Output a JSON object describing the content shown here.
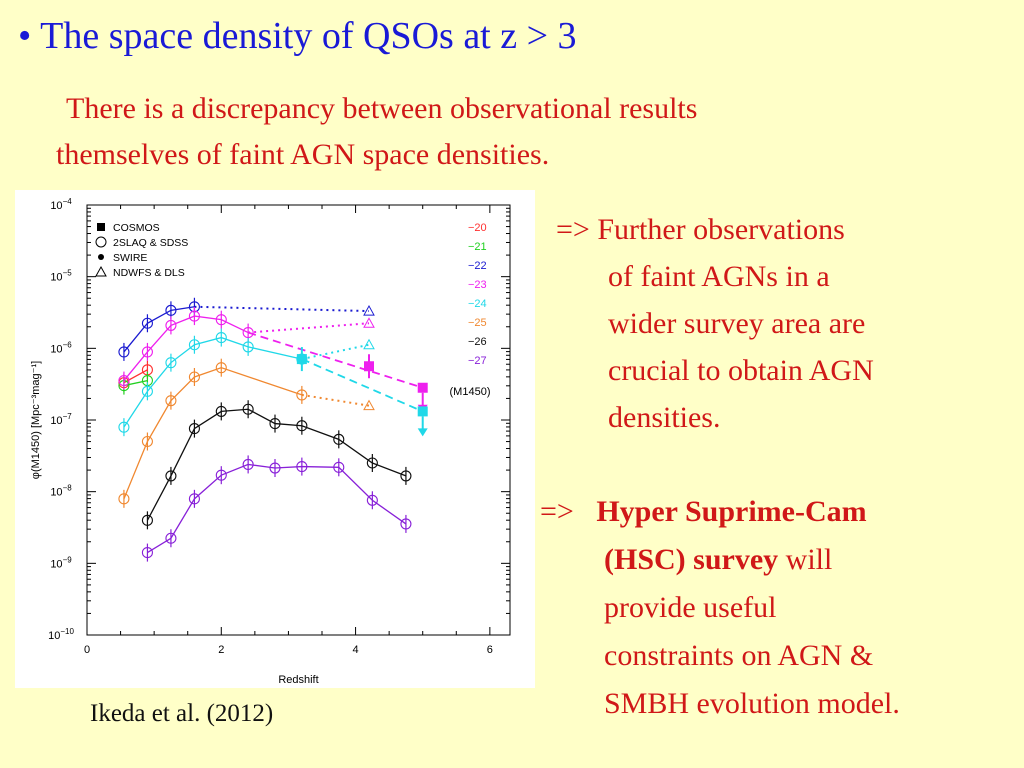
{
  "slide": {
    "title": "• The space density of QSOs at z > 3",
    "subtitle_line1": "There is a discrepancy between observational results",
    "subtitle_line2": "themselves of faint AGN space densities.",
    "point1_prefix": "=> Further observations",
    "point1_lines": [
      "of faint AGNs in a",
      "wider survey area are",
      "crucial to obtain AGN",
      "densities."
    ],
    "point2_prefix": "=>",
    "point2_bold1": "Hyper Suprime-Cam",
    "point2_bold2": "(HSC) survey",
    "point2_after": " will",
    "point2_lines": [
      "provide useful",
      "constraints on AGN &",
      "SMBH evolution model."
    ],
    "citation": "Ikeda et al. (2012)"
  },
  "chart_data": {
    "type": "scatter",
    "xlabel": "Redshift",
    "ylabel": "φ(M1450) [Mpc⁻³mag⁻¹]",
    "xlim": [
      0,
      6.3
    ],
    "ylim_log10": [
      -10,
      -4
    ],
    "x_ticks": [
      "0",
      "2",
      "4",
      "6"
    ],
    "y_ticks": [
      "10−4",
      "10−5",
      "10−6",
      "10−7",
      "10−8",
      "10−9",
      "10−10"
    ],
    "legend_markers": [
      "COSMOS",
      "2SLAQ & SDSS",
      "SWIRE",
      "NDWFS & DLS"
    ],
    "magnitude_title": "(M1450)",
    "series": [
      {
        "name": "−20",
        "color": "#ff3030",
        "x": [
          0.55,
          0.9
        ],
        "logy": [
          -6.48,
          -6.3
        ]
      },
      {
        "name": "−21",
        "color": "#20d020",
        "x": [
          0.55,
          0.9
        ],
        "logy": [
          -6.52,
          -6.45
        ]
      },
      {
        "name": "−22",
        "color": "#1a1ad0",
        "x": [
          0.55,
          0.9,
          1.25,
          1.6
        ],
        "logy": [
          -6.05,
          -5.65,
          -5.47,
          -5.42
        ],
        "dotted": {
          "x": [
            1.6,
            4.2
          ],
          "logy": [
            -5.42,
            -5.48
          ]
        }
      },
      {
        "name": "−23",
        "color": "#ee20ee",
        "x": [
          0.55,
          0.9,
          1.25,
          1.6,
          2.0,
          2.4
        ],
        "logy": [
          -6.45,
          -6.05,
          -5.68,
          -5.55,
          -5.6,
          -5.78
        ],
        "dotted": {
          "x": [
            2.4,
            4.2
          ],
          "logy": [
            -5.78,
            -5.65
          ]
        },
        "dashed": {
          "x": [
            2.4,
            5.0
          ],
          "logy": [
            -5.78,
            -6.55
          ]
        },
        "point": {
          "x": 4.2,
          "logy": -6.25
        },
        "arrow": {
          "x": 5.0,
          "logy": -6.55
        }
      },
      {
        "name": "−24",
        "color": "#20d8e8",
        "x": [
          0.55,
          0.9,
          1.25,
          1.6,
          2.0,
          2.4,
          3.2
        ],
        "logy": [
          -7.1,
          -6.6,
          -6.2,
          -5.95,
          -5.85,
          -5.98,
          -6.15
        ],
        "dotted": {
          "x": [
            3.2,
            4.2
          ],
          "logy": [
            -6.15,
            -5.95
          ]
        },
        "dashed": {
          "x": [
            3.2,
            5.0
          ],
          "logy": [
            -6.15,
            -6.88
          ]
        },
        "point": {
          "x": 3.2,
          "logy": -6.15
        },
        "arrow": {
          "x": 5.0,
          "logy": -6.88
        }
      },
      {
        "name": "−25",
        "color": "#f08830",
        "x": [
          0.55,
          0.9,
          1.25,
          1.6,
          2.0,
          3.2
        ],
        "logy": [
          -8.1,
          -7.3,
          -6.73,
          -6.4,
          -6.27,
          -6.65
        ],
        "dotted": {
          "x": [
            3.2,
            4.2
          ],
          "logy": [
            -6.65,
            -6.8
          ]
        }
      },
      {
        "name": "−26",
        "color": "#101010",
        "x": [
          0.9,
          1.25,
          1.6,
          2.0,
          2.4,
          2.8,
          3.2,
          3.75,
          4.25,
          4.75
        ],
        "logy": [
          -8.4,
          -7.78,
          -7.12,
          -6.88,
          -6.85,
          -7.05,
          -7.08,
          -7.27,
          -7.6,
          -7.78
        ]
      },
      {
        "name": "−27",
        "color": "#8820d8",
        "x": [
          0.9,
          1.25,
          1.6,
          2.0,
          2.4,
          2.8,
          3.2,
          3.75,
          4.25,
          4.75
        ],
        "logy": [
          -8.85,
          -8.65,
          -8.1,
          -7.77,
          -7.62,
          -7.67,
          -7.65,
          -7.66,
          -8.12,
          -8.45
        ]
      }
    ]
  }
}
